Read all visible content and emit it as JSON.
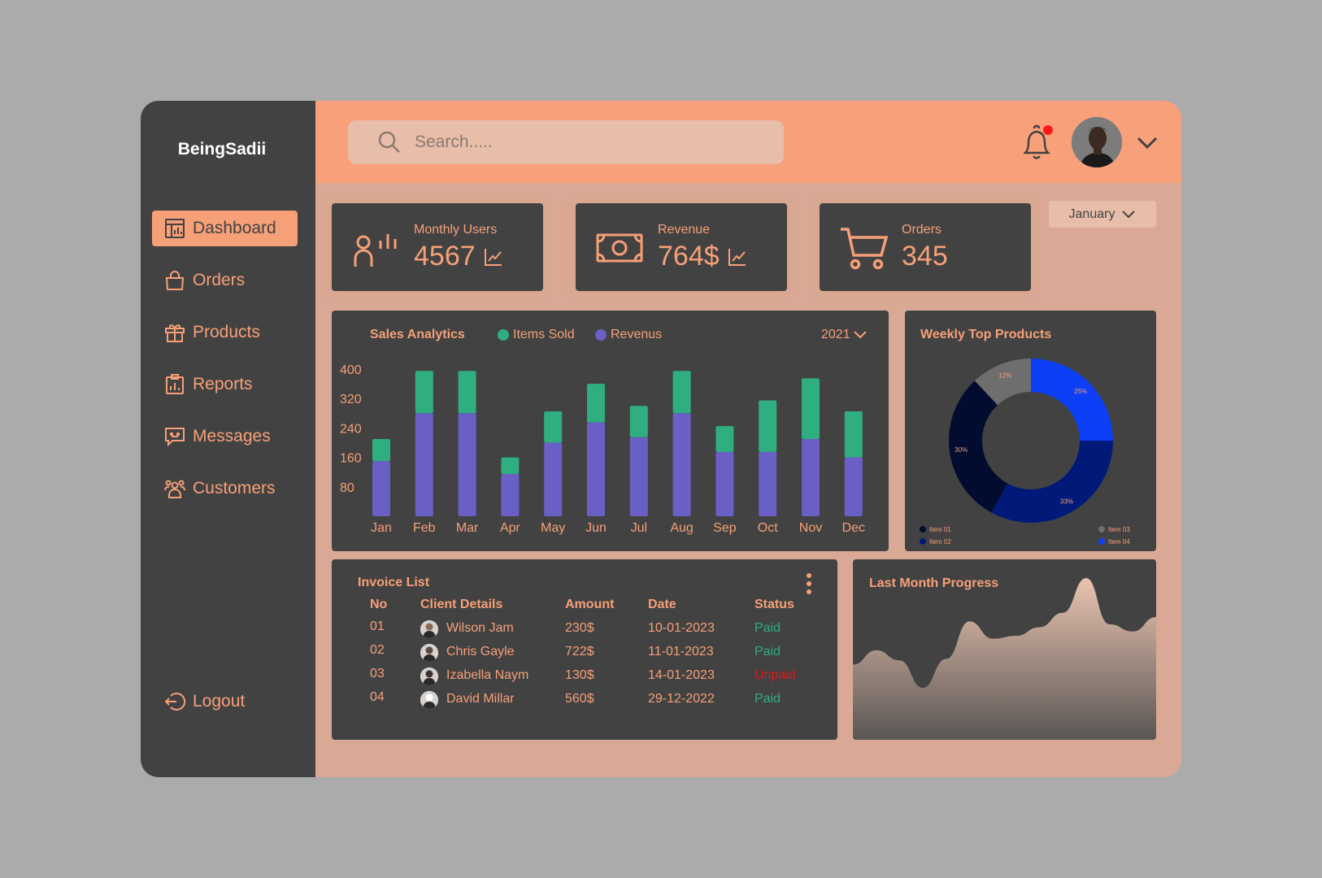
{
  "brand": "BeingSadii",
  "nav": {
    "items": [
      {
        "label": "Dashboard",
        "icon": "dashboard-icon",
        "active": true
      },
      {
        "label": "Orders",
        "icon": "shopping-bag-icon"
      },
      {
        "label": "Products",
        "icon": "gift-icon"
      },
      {
        "label": "Reports",
        "icon": "report-icon"
      },
      {
        "label": "Messages",
        "icon": "message-icon"
      },
      {
        "label": "Customers",
        "icon": "users-icon"
      }
    ],
    "logout": "Logout"
  },
  "header": {
    "search_placeholder": "Search.....",
    "notification_dot_color": "#ff1a1a"
  },
  "stats": {
    "monthly_users": {
      "label": "Monthly Users",
      "value": "4567"
    },
    "revenue": {
      "label": "Revenue",
      "value": "764$"
    },
    "orders": {
      "label": "Orders",
      "value": "345"
    }
  },
  "month_select": "January",
  "sales": {
    "title": "Sales Analytics",
    "year": "2021",
    "legend": {
      "items_sold": "Items Sold",
      "revenue": "Revenus"
    }
  },
  "chart_data": [
    {
      "type": "bar",
      "title": "Sales Analytics",
      "stacked": true,
      "categories": [
        "Jan",
        "Feb",
        "Mar",
        "Apr",
        "May",
        "Jun",
        "Jul",
        "Aug",
        "Sep",
        "Oct",
        "Nov",
        "Dec"
      ],
      "series": [
        {
          "name": "Revenus",
          "color": "#6a5fc5",
          "values": [
            150,
            280,
            280,
            115,
            200,
            255,
            215,
            280,
            175,
            175,
            210,
            160
          ]
        },
        {
          "name": "Items Sold",
          "color": "#2fae80",
          "values": [
            60,
            115,
            115,
            45,
            85,
            105,
            85,
            115,
            70,
            140,
            165,
            125
          ]
        }
      ],
      "yticks": [
        "400",
        "320",
        "240",
        "160",
        "80"
      ],
      "ylim": [
        0,
        400
      ]
    },
    {
      "type": "pie",
      "title": "Weekly Top Products",
      "donut": true,
      "slices": [
        {
          "name": "Item 01",
          "value": 30,
          "label": "30%",
          "color": "#020c2e"
        },
        {
          "name": "Item 02",
          "value": 33,
          "label": "33%",
          "color": "#011a7a"
        },
        {
          "name": "Item 03",
          "value": 12,
          "label": "12%",
          "color": "#6e6e6e"
        },
        {
          "name": "Item 04",
          "value": 25,
          "label": "25%",
          "color": "#0d3ff7"
        }
      ]
    },
    {
      "type": "area",
      "title": "Last Month Progress",
      "values": [
        52,
        62,
        55,
        36,
        56,
        82,
        70,
        72,
        78,
        88,
        112,
        80,
        75,
        85
      ]
    }
  ],
  "invoice": {
    "title": "Invoice List",
    "headers": [
      "No",
      "Client Details",
      "Amount",
      "Date",
      "Status"
    ],
    "rows": [
      {
        "no": "01",
        "client": "Wilson Jam",
        "amount": "230$",
        "date": "10-01-2023",
        "status": "Paid",
        "status_color": "#2fae80"
      },
      {
        "no": "02",
        "client": "Chris Gayle",
        "amount": "722$",
        "date": "11-01-2023",
        "status": "Paid",
        "status_color": "#2fae80"
      },
      {
        "no": "03",
        "client": "Izabella Naym",
        "amount": "130$",
        "date": "14-01-2023",
        "status": "Unpaid",
        "status_color": "#e01818"
      },
      {
        "no": "04",
        "client": "David Millar",
        "amount": "560$",
        "date": "29-12-2022",
        "status": "Paid",
        "status_color": "#2fae80"
      }
    ]
  },
  "progress": {
    "title": "Last Month Progress"
  }
}
